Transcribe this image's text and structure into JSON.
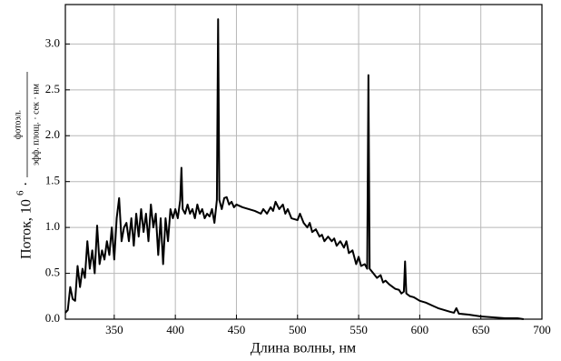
{
  "chart_data": {
    "type": "line",
    "xlabel": "Длина волны, нм",
    "ylabel": {
      "text": "Поток, 10",
      "exponent": "6",
      "separator": "·",
      "numerator": "фотоэл.",
      "denominator": "эфф. площ. · сек · нм"
    },
    "xlim": [
      310,
      700
    ],
    "xticks": [
      350,
      400,
      450,
      500,
      550,
      600,
      650,
      700
    ],
    "ylim": [
      0,
      3.43
    ],
    "yticks": [
      {
        "value": 0,
        "label": "0.0"
      },
      0.5,
      {
        "value": 1,
        "label": "1.0"
      },
      1.5,
      {
        "value": 2,
        "label": "2.0"
      },
      2.5,
      {
        "value": 3,
        "label": "3.0"
      }
    ],
    "grid": true,
    "series": [
      {
        "color": "#000000",
        "x": [
          310,
          312,
          314,
          316,
          318,
          320,
          322,
          324,
          326,
          328,
          330,
          332,
          334,
          336,
          338,
          340,
          342,
          344,
          346,
          348,
          350,
          352,
          354,
          356,
          358,
          360,
          362,
          364,
          366,
          368,
          370,
          372,
          374,
          376,
          378,
          380,
          382,
          384,
          386,
          388,
          390,
          392,
          394,
          396,
          398,
          400,
          402,
          404,
          405,
          406,
          408,
          410,
          412,
          414,
          416,
          418,
          420,
          422,
          424,
          426,
          428,
          430,
          432,
          434,
          435,
          436,
          438,
          440,
          442,
          444,
          446,
          448,
          450,
          455,
          460,
          465,
          470,
          472,
          475,
          478,
          480,
          482,
          485,
          488,
          490,
          492,
          495,
          500,
          502,
          505,
          508,
          510,
          512,
          515,
          518,
          520,
          522,
          525,
          528,
          530,
          532,
          535,
          538,
          540,
          542,
          545,
          548,
          550,
          552,
          555,
          557,
          558,
          559,
          562,
          565,
          568,
          570,
          572,
          575,
          578,
          580,
          583,
          585,
          587,
          588,
          589,
          592,
          595,
          600,
          605,
          610,
          615,
          620,
          625,
          628,
          630,
          632,
          640,
          650,
          660,
          670,
          680,
          685
        ],
        "values": [
          0.07,
          0.1,
          0.35,
          0.22,
          0.2,
          0.58,
          0.35,
          0.55,
          0.45,
          0.85,
          0.55,
          0.75,
          0.5,
          1.02,
          0.6,
          0.75,
          0.65,
          0.85,
          0.7,
          1.0,
          0.65,
          1.1,
          1.32,
          0.85,
          1.0,
          1.05,
          0.85,
          1.1,
          0.8,
          1.15,
          0.9,
          1.2,
          0.95,
          1.15,
          0.85,
          1.25,
          1.0,
          1.15,
          0.7,
          1.1,
          0.6,
          1.1,
          0.85,
          1.2,
          1.1,
          1.2,
          1.1,
          1.3,
          1.65,
          1.2,
          1.15,
          1.25,
          1.15,
          1.2,
          1.1,
          1.25,
          1.15,
          1.2,
          1.1,
          1.15,
          1.12,
          1.2,
          1.05,
          1.3,
          3.27,
          1.3,
          1.2,
          1.32,
          1.33,
          1.25,
          1.28,
          1.22,
          1.25,
          1.22,
          1.2,
          1.18,
          1.15,
          1.2,
          1.15,
          1.22,
          1.18,
          1.28,
          1.2,
          1.25,
          1.15,
          1.2,
          1.1,
          1.08,
          1.15,
          1.05,
          1.0,
          1.05,
          0.95,
          0.98,
          0.9,
          0.92,
          0.85,
          0.9,
          0.85,
          0.88,
          0.8,
          0.85,
          0.78,
          0.85,
          0.72,
          0.75,
          0.6,
          0.68,
          0.58,
          0.6,
          0.55,
          2.66,
          0.55,
          0.5,
          0.45,
          0.48,
          0.4,
          0.42,
          0.38,
          0.35,
          0.33,
          0.32,
          0.28,
          0.3,
          0.63,
          0.28,
          0.25,
          0.24,
          0.2,
          0.18,
          0.15,
          0.12,
          0.1,
          0.08,
          0.07,
          0.12,
          0.06,
          0.05,
          0.03,
          0.02,
          0.01,
          0.01,
          0
        ]
      }
    ]
  }
}
